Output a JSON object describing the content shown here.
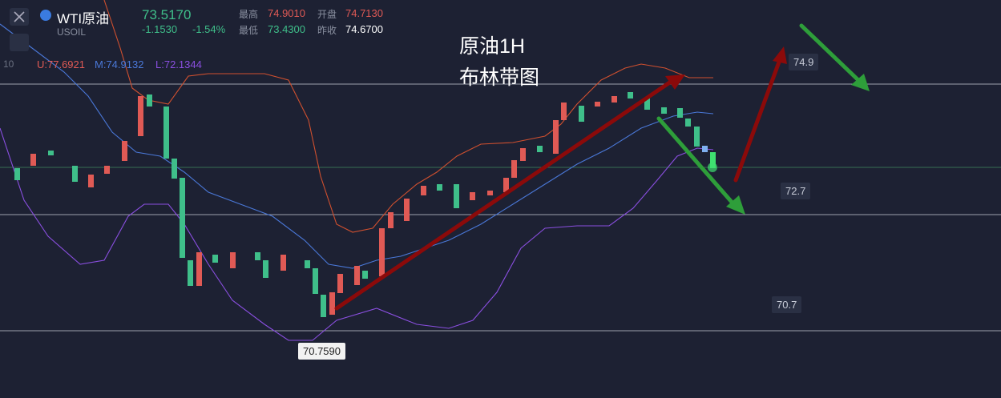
{
  "header": {
    "symbol": "WTI原油",
    "code": "USOIL",
    "price": "73.5170",
    "change": "-1.1530",
    "change_pct": "-1.54%",
    "high_label": "最高",
    "high": "74.9010",
    "open_label": "开盘",
    "open": "74.7130",
    "low_label": "最低",
    "low": "73.4300",
    "prev_label": "昨收",
    "prev": "74.6700"
  },
  "indicator": {
    "period": "10",
    "upper": "U:77.6921",
    "middle": "M:74.9132",
    "lower": "L:72.1344"
  },
  "annotation": {
    "line1": "原油1H",
    "line2": "布林带图"
  },
  "price_labels": {
    "level1": "74.9",
    "level2": "72.7",
    "level3": "70.7",
    "low_marker": "70.7590"
  }
}
